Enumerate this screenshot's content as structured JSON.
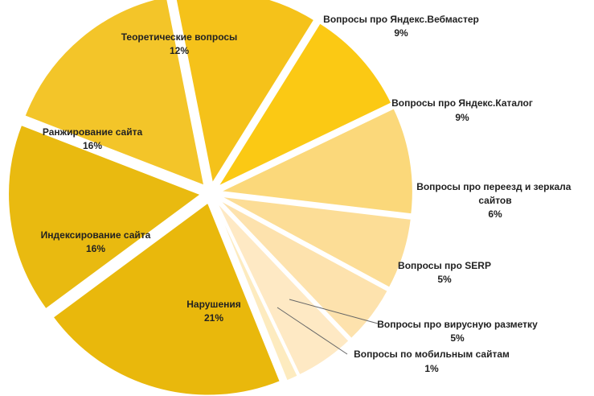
{
  "chart_data": {
    "type": "pie",
    "title": "",
    "slices": [
      {
        "name": "Теоретические вопросы",
        "percent_label": "12%",
        "value": 12,
        "color": "#f5c21a"
      },
      {
        "name": "Вопросы про Яндекс.Вебмастер",
        "percent_label": "9%",
        "value": 9,
        "color": "#fbc914"
      },
      {
        "name": "Вопросы про Яндекс.Каталог",
        "percent_label": "9%",
        "value": 9,
        "color": "#fbd87a"
      },
      {
        "name": "Вопросы про переезд и зеркала сайтов",
        "percent_label": "6%",
        "value": 6,
        "color": "#fcdd96"
      },
      {
        "name": "Вопросы про SERP",
        "percent_label": "5%",
        "value": 5,
        "color": "#fde2ad"
      },
      {
        "name": "Вопросы про вирусную разметку",
        "percent_label": "5%",
        "value": 5,
        "color": "#fee9c4"
      },
      {
        "name": "Вопросы по мобильным сайтам",
        "percent_label": "1%",
        "value": 1,
        "color": "#fdebbf"
      },
      {
        "name": "Нарушения",
        "percent_label": "21%",
        "value": 21,
        "color": "#e9b80c"
      },
      {
        "name": "Индексирование сайта",
        "percent_label": "16%",
        "value": 16,
        "color": "#e9ba10"
      },
      {
        "name": "Ранжирование сайта",
        "percent_label": "16%",
        "value": 16,
        "color": "#f3c529"
      }
    ],
    "legend": "none"
  }
}
